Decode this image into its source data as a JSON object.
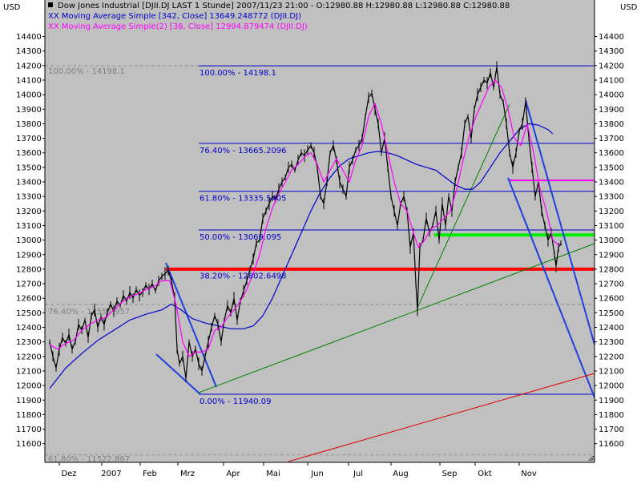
{
  "header": {
    "currency_left": "USD",
    "currency_right": "USD",
    "title": "Dow Jones Industrial [DJII.DJ LAST 1 Stunde] 2007/11/23 21:00 - O:12980.88 H:12980.88 L:12980.88 C:12980.88",
    "legend": [
      {
        "label": "XX Moving Average Simple [342, Close] 13649.248772 (DJII.DJ)",
        "color": "#0000cc"
      },
      {
        "label": "XX Moving Average Simple(2) [38, Close] 12994.879474 (DJII.DJ)",
        "color": "#ff00ff"
      }
    ]
  },
  "chart_data": {
    "type": "line",
    "ylim": [
      11450,
      14450
    ],
    "y_ticks": [
      "14400",
      "14300",
      "14200",
      "14100",
      "14000",
      "13900",
      "13800",
      "13700",
      "13600",
      "13500",
      "13400",
      "13300",
      "13200",
      "13100",
      "13000",
      "12900",
      "12800",
      "12700",
      "12600",
      "12500",
      "12400",
      "12300",
      "12200",
      "12100",
      "12000",
      "11900",
      "11800",
      "11700",
      "11600"
    ],
    "x_labels": [
      "Dez",
      "2007",
      "Feb",
      "Mrz",
      "Apr",
      "Mai",
      "Jun",
      "Jul",
      "Aug",
      "Sep",
      "Okt",
      "Nov"
    ],
    "colors": {
      "price": "#000000",
      "ma342": "#0000cc",
      "ma38": "#ff00ff",
      "fib": "#0000cc",
      "trend_blue": "#1f3fdf",
      "trend_green": "#008000",
      "trend_red": "#dd0000",
      "support_red": "#ff0000",
      "support_green": "#00ee00",
      "resistance_magenta": "#ff00ff",
      "background": "#c0c0c0"
    },
    "fib_levels": [
      {
        "label": "100.00% - 14198.1",
        "value": 14198.1
      },
      {
        "label": "76.40% - 13665.2096",
        "value": 13665.21
      },
      {
        "label": "61.80% - 13335.5405",
        "value": 13335.54
      },
      {
        "label": "50.00% - 13069.095",
        "value": 13069.1
      },
      {
        "label": "38.20% - 12802.6498",
        "value": 12802.65
      },
      {
        "label": "0.00% - 11940.09",
        "value": 11940.09
      }
    ],
    "fib_old": [
      {
        "label": "100.00% - 14198.1",
        "value": 14198.1
      },
      {
        "label": "76.40% - 12557.957",
        "value": 12557.96
      },
      {
        "label": "61.80% - 11522.867",
        "value": 11522.87
      }
    ],
    "horizontal_lines": [
      {
        "name": "red-support",
        "value": 12800,
        "x_start": 207,
        "x_end": 742,
        "color": "#ff0000"
      },
      {
        "name": "green-support",
        "value": 13035,
        "x_start": 542,
        "x_end": 742,
        "color": "#00ee00"
      },
      {
        "name": "magenta-resistance",
        "value": 13410,
        "x_start": 636,
        "x_end": 742,
        "color": "#ff00ff"
      }
    ],
    "price_series": [
      [
        62,
        12300
      ],
      [
        66,
        12200
      ],
      [
        70,
        12120
      ],
      [
        74,
        12250
      ],
      [
        78,
        12330
      ],
      [
        82,
        12290
      ],
      [
        86,
        12350
      ],
      [
        90,
        12250
      ],
      [
        94,
        12300
      ],
      [
        98,
        12420
      ],
      [
        102,
        12380
      ],
      [
        106,
        12450
      ],
      [
        110,
        12330
      ],
      [
        114,
        12480
      ],
      [
        118,
        12520
      ],
      [
        122,
        12400
      ],
      [
        126,
        12470
      ],
      [
        130,
        12420
      ],
      [
        134,
        12500
      ],
      [
        138,
        12560
      ],
      [
        142,
        12510
      ],
      [
        146,
        12580
      ],
      [
        150,
        12550
      ],
      [
        154,
        12620
      ],
      [
        158,
        12580
      ],
      [
        162,
        12640
      ],
      [
        166,
        12600
      ],
      [
        170,
        12660
      ],
      [
        174,
        12620
      ],
      [
        178,
        12640
      ],
      [
        182,
        12690
      ],
      [
        186,
        12660
      ],
      [
        190,
        12700
      ],
      [
        194,
        12650
      ],
      [
        198,
        12720
      ],
      [
        202,
        12750
      ],
      [
        206,
        12770
      ],
      [
        210,
        12790
      ],
      [
        214,
        12720
      ],
      [
        218,
        12600
      ],
      [
        221,
        12250
      ],
      [
        224,
        12150
      ],
      [
        228,
        12200
      ],
      [
        232,
        12050
      ],
      [
        236,
        12300
      ],
      [
        240,
        12200
      ],
      [
        244,
        12250
      ],
      [
        248,
        12150
      ],
      [
        252,
        12100
      ],
      [
        256,
        12200
      ],
      [
        260,
        12300
      ],
      [
        264,
        12400
      ],
      [
        268,
        12480
      ],
      [
        272,
        12420
      ],
      [
        276,
        12300
      ],
      [
        280,
        12450
      ],
      [
        284,
        12550
      ],
      [
        288,
        12500
      ],
      [
        292,
        12600
      ],
      [
        296,
        12450
      ],
      [
        300,
        12580
      ],
      [
        304,
        12650
      ],
      [
        308,
        12720
      ],
      [
        312,
        12800
      ],
      [
        316,
        12870
      ],
      [
        320,
        12980
      ],
      [
        324,
        13000
      ],
      [
        328,
        13150
      ],
      [
        332,
        13200
      ],
      [
        336,
        13250
      ],
      [
        340,
        13300
      ],
      [
        344,
        13280
      ],
      [
        348,
        13350
      ],
      [
        352,
        13400
      ],
      [
        356,
        13430
      ],
      [
        360,
        13500
      ],
      [
        364,
        13520
      ],
      [
        368,
        13480
      ],
      [
        372,
        13550
      ],
      [
        376,
        13600
      ],
      [
        380,
        13580
      ],
      [
        384,
        13620
      ],
      [
        388,
        13650
      ],
      [
        392,
        13600
      ],
      [
        396,
        13500
      ],
      [
        400,
        13300
      ],
      [
        404,
        13250
      ],
      [
        408,
        13400
      ],
      [
        412,
        13600
      ],
      [
        416,
        13650
      ],
      [
        420,
        13550
      ],
      [
        424,
        13400
      ],
      [
        428,
        13350
      ],
      [
        432,
        13300
      ],
      [
        436,
        13500
      ],
      [
        440,
        13550
      ],
      [
        444,
        13620
      ],
      [
        448,
        13650
      ],
      [
        452,
        13700
      ],
      [
        456,
        13850
      ],
      [
        460,
        13980
      ],
      [
        464,
        14010
      ],
      [
        468,
        13900
      ],
      [
        472,
        13800
      ],
      [
        476,
        13600
      ],
      [
        480,
        13700
      ],
      [
        484,
        13500
      ],
      [
        488,
        13300
      ],
      [
        492,
        13200
      ],
      [
        496,
        13100
      ],
      [
        500,
        13250
      ],
      [
        504,
        13300
      ],
      [
        508,
        13200
      ],
      [
        512,
        12950
      ],
      [
        516,
        13050
      ],
      [
        519,
        12700
      ],
      [
        521,
        12520
      ],
      [
        524,
        12950
      ],
      [
        528,
        13000
      ],
      [
        532,
        13150
      ],
      [
        536,
        13050
      ],
      [
        540,
        13100
      ],
      [
        544,
        13200
      ],
      [
        548,
        13000
      ],
      [
        552,
        13250
      ],
      [
        556,
        13100
      ],
      [
        560,
        13300
      ],
      [
        564,
        13200
      ],
      [
        568,
        13400
      ],
      [
        572,
        13500
      ],
      [
        576,
        13600
      ],
      [
        580,
        13800
      ],
      [
        584,
        13850
      ],
      [
        588,
        13700
      ],
      [
        592,
        13900
      ],
      [
        596,
        14000
      ],
      [
        600,
        14050
      ],
      [
        604,
        14100
      ],
      [
        608,
        14080
      ],
      [
        612,
        14150
      ],
      [
        616,
        14050
      ],
      [
        620,
        14190
      ],
      [
        624,
        14000
      ],
      [
        628,
        13950
      ],
      [
        632,
        13800
      ],
      [
        636,
        13600
      ],
      [
        640,
        13500
      ],
      [
        644,
        13600
      ],
      [
        648,
        13750
      ],
      [
        652,
        13800
      ],
      [
        656,
        13950
      ],
      [
        660,
        13700
      ],
      [
        664,
        13500
      ],
      [
        668,
        13300
      ],
      [
        672,
        13400
      ],
      [
        676,
        13200
      ],
      [
        680,
        13100
      ],
      [
        684,
        13000
      ],
      [
        688,
        13050
      ],
      [
        692,
        12900
      ],
      [
        694,
        12820
      ],
      [
        697,
        12950
      ],
      [
        700,
        12980
      ]
    ],
    "ma38_series": [
      [
        62,
        12280
      ],
      [
        72,
        12250
      ],
      [
        82,
        12290
      ],
      [
        92,
        12310
      ],
      [
        102,
        12380
      ],
      [
        112,
        12420
      ],
      [
        122,
        12450
      ],
      [
        132,
        12470
      ],
      [
        142,
        12520
      ],
      [
        152,
        12570
      ],
      [
        162,
        12610
      ],
      [
        172,
        12630
      ],
      [
        182,
        12660
      ],
      [
        192,
        12680
      ],
      [
        202,
        12720
      ],
      [
        212,
        12720
      ],
      [
        220,
        12550
      ],
      [
        228,
        12300
      ],
      [
        236,
        12200
      ],
      [
        244,
        12230
      ],
      [
        252,
        12230
      ],
      [
        260,
        12250
      ],
      [
        268,
        12380
      ],
      [
        276,
        12400
      ],
      [
        284,
        12470
      ],
      [
        292,
        12520
      ],
      [
        300,
        12580
      ],
      [
        308,
        12660
      ],
      [
        316,
        12770
      ],
      [
        324,
        12900
      ],
      [
        332,
        13080
      ],
      [
        340,
        13220
      ],
      [
        348,
        13320
      ],
      [
        356,
        13400
      ],
      [
        364,
        13480
      ],
      [
        372,
        13520
      ],
      [
        380,
        13570
      ],
      [
        388,
        13600
      ],
      [
        396,
        13520
      ],
      [
        404,
        13400
      ],
      [
        412,
        13480
      ],
      [
        420,
        13560
      ],
      [
        428,
        13480
      ],
      [
        436,
        13400
      ],
      [
        444,
        13550
      ],
      [
        452,
        13650
      ],
      [
        460,
        13850
      ],
      [
        468,
        13940
      ],
      [
        476,
        13800
      ],
      [
        484,
        13600
      ],
      [
        492,
        13400
      ],
      [
        500,
        13250
      ],
      [
        508,
        13200
      ],
      [
        516,
        13050
      ],
      [
        522,
        12950
      ],
      [
        530,
        13000
      ],
      [
        538,
        13080
      ],
      [
        546,
        13100
      ],
      [
        554,
        13150
      ],
      [
        562,
        13200
      ],
      [
        570,
        13350
      ],
      [
        578,
        13550
      ],
      [
        586,
        13720
      ],
      [
        594,
        13850
      ],
      [
        602,
        13950
      ],
      [
        610,
        14050
      ],
      [
        618,
        14100
      ],
      [
        626,
        14050
      ],
      [
        634,
        13900
      ],
      [
        642,
        13700
      ],
      [
        650,
        13650
      ],
      [
        658,
        13800
      ],
      [
        666,
        13600
      ],
      [
        674,
        13350
      ],
      [
        682,
        13200
      ],
      [
        690,
        13000
      ],
      [
        698,
        12960
      ]
    ],
    "ma342_series": [
      [
        62,
        11980
      ],
      [
        82,
        12120
      ],
      [
        102,
        12220
      ],
      [
        122,
        12310
      ],
      [
        142,
        12380
      ],
      [
        162,
        12450
      ],
      [
        182,
        12490
      ],
      [
        202,
        12520
      ],
      [
        214,
        12560
      ],
      [
        226,
        12520
      ],
      [
        240,
        12460
      ],
      [
        256,
        12430
      ],
      [
        272,
        12410
      ],
      [
        288,
        12390
      ],
      [
        304,
        12390
      ],
      [
        316,
        12410
      ],
      [
        328,
        12480
      ],
      [
        340,
        12600
      ],
      [
        352,
        12750
      ],
      [
        364,
        12900
      ],
      [
        376,
        13050
      ],
      [
        388,
        13200
      ],
      [
        400,
        13330
      ],
      [
        412,
        13430
      ],
      [
        424,
        13510
      ],
      [
        436,
        13560
      ],
      [
        448,
        13580
      ],
      [
        460,
        13600
      ],
      [
        472,
        13610
      ],
      [
        484,
        13600
      ],
      [
        496,
        13580
      ],
      [
        508,
        13550
      ],
      [
        520,
        13520
      ],
      [
        532,
        13500
      ],
      [
        544,
        13480
      ],
      [
        556,
        13430
      ],
      [
        568,
        13380
      ],
      [
        580,
        13350
      ],
      [
        590,
        13350
      ],
      [
        600,
        13400
      ],
      [
        612,
        13500
      ],
      [
        624,
        13600
      ],
      [
        636,
        13680
      ],
      [
        648,
        13760
      ],
      [
        660,
        13800
      ],
      [
        672,
        13790
      ],
      [
        684,
        13760
      ],
      [
        690,
        13730
      ]
    ],
    "trend_lines": [
      {
        "name": "blue-downtrend-feb",
        "points": [
          [
            207,
            328
          ],
          [
            270,
            483
          ]
        ],
        "color": "#1f3fdf",
        "width": 2
      },
      {
        "name": "blue-channel-feb",
        "points": [
          [
            195,
            442
          ],
          [
            250,
            492
          ]
        ],
        "color": "#1f3fdf",
        "width": 2
      },
      {
        "name": "blue-downtrend-oct",
        "points": [
          [
            656,
            125
          ],
          [
            742,
            430
          ]
        ],
        "color": "#1f3fdf",
        "width": 2
      },
      {
        "name": "blue-downtrend-oct-lower",
        "points": [
          [
            634,
            222
          ],
          [
            742,
            496
          ]
        ],
        "color": "#1f3fdf",
        "width": 2
      },
      {
        "name": "green-uptrend-long",
        "points": [
          [
            248,
            490
          ],
          [
            742,
            304
          ]
        ],
        "color": "#008000",
        "width": 1
      },
      {
        "name": "green-uptrend-aug",
        "points": [
          [
            521,
            384
          ],
          [
            636,
            130
          ]
        ],
        "color": "#008000",
        "width": 1
      },
      {
        "name": "red-uptrend-long",
        "points": [
          [
            360,
            576
          ],
          [
            742,
            466
          ]
        ],
        "color": "#dd0000",
        "width": 1
      }
    ]
  }
}
